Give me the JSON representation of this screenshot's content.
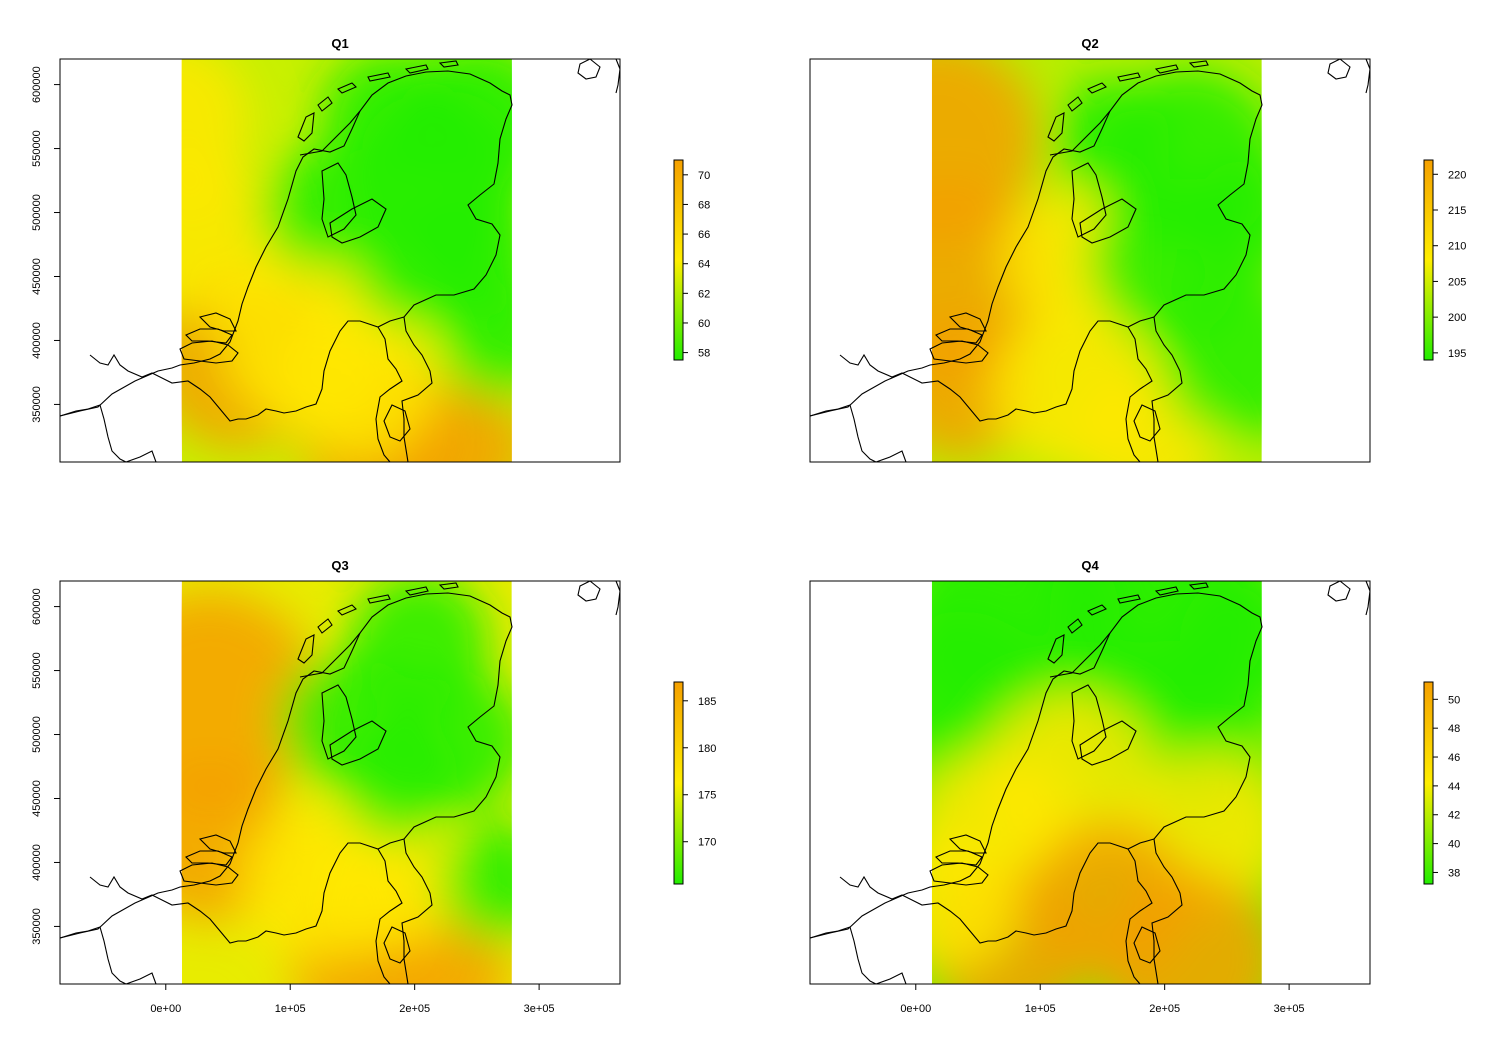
{
  "chart_data": [
    {
      "type": "heatmap",
      "title": "Q1",
      "xlim": [
        -85000,
        365000
      ],
      "ylim": [
        305000,
        620000
      ],
      "xticks": [],
      "xtick_labels": [],
      "yticks": [
        350000,
        400000,
        450000,
        500000,
        550000,
        600000
      ],
      "ytick_labels": [
        "350000",
        "400000",
        "450000",
        "500000",
        "550000",
        "600000"
      ],
      "raster_extent": {
        "x": [
          13000,
          278000
        ],
        "y": [
          305000,
          620000
        ]
      },
      "color_scale": {
        "low": "#22ee00",
        "mid": "#ffee00",
        "high": "#f5a000"
      },
      "legend": {
        "range": [
          57.5,
          71
        ],
        "ticks": [
          58,
          60,
          62,
          64,
          66,
          68,
          70
        ],
        "tick_labels": [
          "58",
          "60",
          "62",
          "64",
          "66",
          "68",
          "70"
        ]
      },
      "grid": false
    },
    {
      "type": "heatmap",
      "title": "Q2",
      "xlim": [
        -85000,
        365000
      ],
      "ylim": [
        305000,
        620000
      ],
      "xticks": [],
      "xtick_labels": [],
      "yticks": [],
      "ytick_labels": [],
      "raster_extent": {
        "x": [
          13000,
          278000
        ],
        "y": [
          305000,
          620000
        ]
      },
      "color_scale": {
        "low": "#22ee00",
        "mid": "#ffee00",
        "high": "#f5a000"
      },
      "legend": {
        "range": [
          194,
          222
        ],
        "ticks": [
          195,
          200,
          205,
          210,
          215,
          220
        ],
        "tick_labels": [
          "195",
          "200",
          "205",
          "210",
          "215",
          "220"
        ]
      },
      "grid": false
    },
    {
      "type": "heatmap",
      "title": "Q3",
      "xlim": [
        -85000,
        365000
      ],
      "ylim": [
        305000,
        620000
      ],
      "xticks": [
        0,
        100000,
        200000,
        300000
      ],
      "xtick_labels": [
        "0e+00",
        "1e+05",
        "2e+05",
        "3e+05"
      ],
      "yticks": [
        350000,
        400000,
        450000,
        500000,
        550000,
        600000
      ],
      "ytick_labels": [
        "350000",
        "400000",
        "450000",
        "500000",
        "550000",
        "600000"
      ],
      "raster_extent": {
        "x": [
          13000,
          278000
        ],
        "y": [
          305000,
          620000
        ]
      },
      "color_scale": {
        "low": "#22ee00",
        "mid": "#ffee00",
        "high": "#f5a000"
      },
      "legend": {
        "range": [
          165.5,
          187
        ],
        "ticks": [
          170,
          175,
          180,
          185
        ],
        "tick_labels": [
          "170",
          "175",
          "180",
          "185"
        ]
      },
      "grid": false
    },
    {
      "type": "heatmap",
      "title": "Q4",
      "xlim": [
        -85000,
        365000
      ],
      "ylim": [
        305000,
        620000
      ],
      "xticks": [
        0,
        100000,
        200000,
        300000
      ],
      "xtick_labels": [
        "0e+00",
        "1e+05",
        "2e+05",
        "3e+05"
      ],
      "yticks": [],
      "ytick_labels": [],
      "raster_extent": {
        "x": [
          13000,
          278000
        ],
        "y": [
          305000,
          620000
        ]
      },
      "color_scale": {
        "low": "#22ee00",
        "mid": "#ffee00",
        "high": "#f5a000"
      },
      "legend": {
        "range": [
          37.2,
          51.2
        ],
        "ticks": [
          38,
          40,
          42,
          44,
          46,
          48,
          50
        ],
        "tick_labels": [
          "38",
          "40",
          "42",
          "44",
          "46",
          "48",
          "50"
        ]
      },
      "grid": false
    }
  ]
}
